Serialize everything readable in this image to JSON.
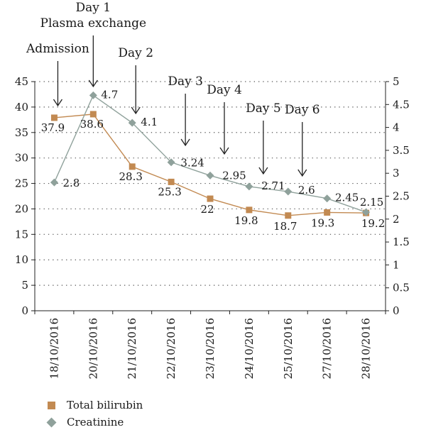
{
  "chart_data": {
    "type": "line",
    "categories": [
      "18/10/2016",
      "20/10/2016",
      "21/10/2016",
      "22/10/2016",
      "23/10/2016",
      "24/10/2016",
      "25/10/2016",
      "27/10/2016",
      "28/10/2016"
    ],
    "series": [
      {
        "name": "Total bilirubin",
        "axis": "left",
        "color": "#c28a52",
        "marker": "square",
        "values": [
          37.9,
          38.6,
          28.3,
          25.3,
          22,
          19.8,
          18.7,
          19.3,
          19.2
        ],
        "labels": [
          "37.9",
          "38.6",
          "28.3",
          "25.3",
          "22",
          "19.8",
          "18.7",
          "19.3",
          "19.2"
        ]
      },
      {
        "name": "Creatinine",
        "axis": "right",
        "color": "#8fa19b",
        "marker": "diamond",
        "values": [
          2.8,
          4.7,
          4.1,
          3.24,
          2.95,
          2.71,
          2.6,
          2.45,
          2.15
        ],
        "labels": [
          "2.8",
          "4.7",
          "4.1",
          "3.24",
          "2.95",
          "2.71",
          "2.6",
          "2.45",
          "2.15"
        ]
      }
    ],
    "y_left": {
      "range": [
        0,
        45
      ],
      "ticks": [
        "0",
        "5",
        "10",
        "15",
        "20",
        "25",
        "30",
        "35",
        "40",
        "45"
      ],
      "tick_values": [
        0,
        5,
        10,
        15,
        20,
        25,
        30,
        35,
        40,
        45
      ]
    },
    "y_right": {
      "range": [
        0,
        5
      ],
      "ticks": [
        "0",
        "0.5",
        "1",
        "1.5",
        "2",
        "2.5",
        "3",
        "3.5",
        "4",
        "4.5",
        "5"
      ],
      "tick_values": [
        0,
        0.5,
        1,
        1.5,
        2,
        2.5,
        3,
        3.5,
        4,
        4.5,
        5
      ]
    },
    "grid": "horizontal dotted",
    "legend_position": "bottom-left",
    "annotations": [
      {
        "lines": [
          "Admission"
        ],
        "category_index": 0
      },
      {
        "lines": [
          "Day 1",
          "Plasma exchange"
        ],
        "category_index": 1
      },
      {
        "lines": [
          "Day 2"
        ],
        "category_index": 2
      },
      {
        "lines": [
          "Day 3"
        ],
        "category_index": 3
      },
      {
        "lines": [
          "Day 4"
        ],
        "category_index": 4
      },
      {
        "lines": [
          "Day 5"
        ],
        "category_index": 5
      },
      {
        "lines": [
          "Day 6"
        ],
        "category_index": 6
      }
    ]
  },
  "legend": {
    "items": [
      {
        "label": "Total bilirubin",
        "color": "#c28a52",
        "marker": "square"
      },
      {
        "label": "Creatinine",
        "color": "#8fa19b",
        "marker": "diamond"
      }
    ]
  }
}
